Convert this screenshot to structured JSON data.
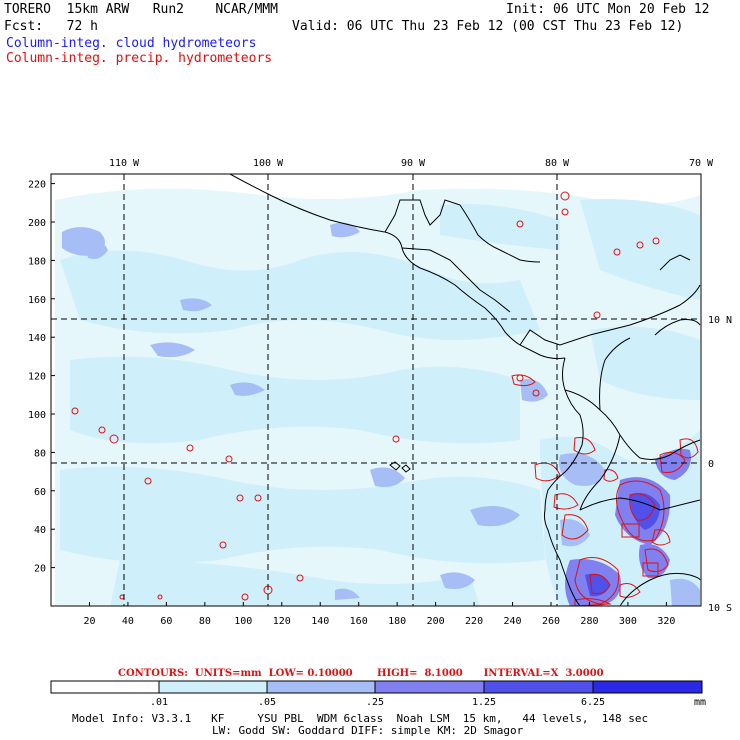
{
  "header": {
    "model": "TORERO  15km ARW   Run2    NCAR/MMM",
    "init": "Init: 06 UTC Mon 20 Feb 12",
    "fcst": "Fcst:   72 h",
    "valid": "Valid: 06 UTC Thu 23 Feb 12 (00 CST Thu 23 Feb 12)",
    "field_cloud": "Column-integ. cloud hydrometeors",
    "field_precip": "Column-integ. precip. hydrometeors"
  },
  "map": {
    "lon_labels": [
      "110 W",
      "100 W",
      "90 W",
      "80 W",
      "70 W"
    ],
    "lat_labels": [
      "10 N",
      "0",
      "10 S"
    ],
    "y_ticks": [
      "220",
      "200",
      "180",
      "160",
      "140",
      "120",
      "100",
      "80",
      "60",
      "40",
      "20"
    ],
    "x_ticks": [
      "20",
      "40",
      "60",
      "80",
      "100",
      "120",
      "140",
      "160",
      "180",
      "200",
      "220",
      "240",
      "260",
      "280",
      "300",
      "320"
    ]
  },
  "contours_text": "CONTOURS:  UNITS=mm  LOW= 0.10000       HIGH=  8.1000      INTERVAL=X  3.0000",
  "colorbar": {
    "labels": [
      ".01",
      ".05",
      ".25",
      "1.25",
      "6.25"
    ],
    "unit": "mm",
    "colors": [
      "#ffffff",
      "#cfeffa",
      "#a6bdf6",
      "#8080f0",
      "#5050ea",
      "#2a2ae6",
      "#0a0ae0"
    ]
  },
  "footer": {
    "line1": "Model Info: V3.3.1   KF     YSU PBL  WDM 6class  Noah LSM  15 km,   44 levels,  148 sec",
    "line2": "LW: Godd SW: Goddard DIFF: simple KM: 2D Smagor"
  }
}
